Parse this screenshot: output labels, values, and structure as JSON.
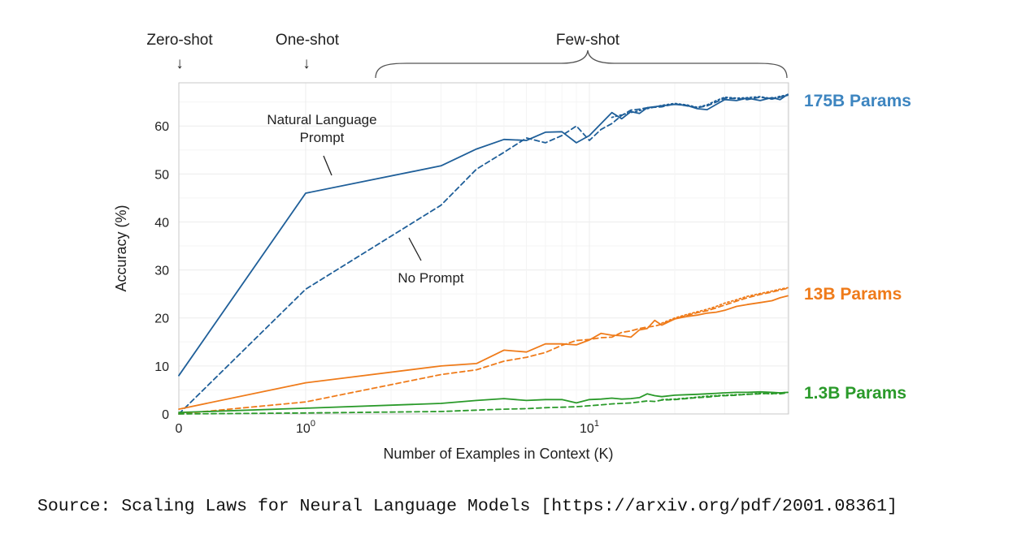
{
  "chart_data": {
    "type": "line",
    "xscale": "symlog",
    "xlabel": "Number of Examples in Context  (K)",
    "ylabel": "Accuracy (%)",
    "xlim": [
      0,
      50
    ],
    "ylim": [
      0,
      69
    ],
    "grid": true,
    "x_ticks": [
      {
        "value": 0,
        "base": "0",
        "exp": ""
      },
      {
        "value": 1,
        "base": "10",
        "exp": "0"
      },
      {
        "value": 10,
        "base": "10",
        "exp": "1"
      }
    ],
    "y_ticks": [
      0,
      10,
      20,
      30,
      40,
      50,
      60
    ],
    "regime_labels": {
      "zero_shot": "Zero-shot",
      "one_shot": "One-shot",
      "few_shot": "Few-shot",
      "arrow": "↓"
    },
    "annotations": {
      "natural_language_line1": "Natural Language",
      "natural_language_line2": "Prompt",
      "no_prompt": "No Prompt"
    },
    "groups": [
      {
        "label": "175B Params",
        "color": "#1f5f99",
        "label_color": "#3d85c0",
        "series": [
          {
            "style": "solid",
            "points": [
              [
                0,
                8
              ],
              [
                1,
                46
              ],
              [
                3,
                51.7
              ],
              [
                4,
                55.2
              ],
              [
                5,
                57.2
              ],
              [
                6,
                57
              ],
              [
                7,
                58.7
              ],
              [
                8,
                58.8
              ],
              [
                9,
                56.5
              ],
              [
                10,
                58
              ],
              [
                11,
                60.5
              ],
              [
                12,
                62.8
              ],
              [
                13,
                61.5
              ],
              [
                14,
                63
              ],
              [
                15,
                62.6
              ],
              [
                16,
                63.8
              ],
              [
                18,
                64.2
              ],
              [
                20,
                64.5
              ],
              [
                22,
                64.3
              ],
              [
                24,
                63.6
              ],
              [
                26,
                63.4
              ],
              [
                28,
                64.5
              ],
              [
                30,
                65.5
              ],
              [
                33,
                65.3
              ],
              [
                36,
                65.8
              ],
              [
                40,
                65.3
              ],
              [
                44,
                65.9
              ],
              [
                47,
                65.5
              ],
              [
                50,
                66.6
              ]
            ]
          },
          {
            "style": "dashed",
            "points": [
              [
                0,
                0
              ],
              [
                1,
                26
              ],
              [
                3,
                43.5
              ],
              [
                4,
                51
              ],
              [
                5,
                54.5
              ],
              [
                6,
                57.5
              ],
              [
                7,
                56.5
              ],
              [
                8,
                58
              ],
              [
                9,
                60
              ],
              [
                10,
                57
              ],
              [
                11,
                59.3
              ],
              [
                12,
                60.5
              ],
              [
                13,
                62.2
              ],
              [
                14,
                63.3
              ],
              [
                15,
                63.5
              ],
              [
                16,
                63.8
              ],
              [
                18,
                64
              ],
              [
                20,
                64.6
              ],
              [
                22,
                64.2
              ],
              [
                24,
                63.8
              ],
              [
                26,
                64.2
              ],
              [
                28,
                65
              ],
              [
                30,
                65.8
              ],
              [
                33,
                65.7
              ],
              [
                36,
                65.5
              ],
              [
                40,
                66
              ],
              [
                44,
                65.6
              ],
              [
                47,
                66
              ],
              [
                50,
                66.4
              ]
            ]
          },
          {
            "style": "dotted",
            "points": [
              [
                12,
                61.8
              ],
              [
                14,
                62.8
              ],
              [
                16,
                63.6
              ],
              [
                18,
                64.3
              ],
              [
                20,
                64.7
              ],
              [
                22,
                64.4
              ],
              [
                24,
                63.9
              ],
              [
                26,
                64.4
              ],
              [
                28,
                65.3
              ],
              [
                30,
                66
              ],
              [
                33,
                65.8
              ],
              [
                36,
                65.9
              ],
              [
                40,
                66.1
              ],
              [
                44,
                65.7
              ],
              [
                47,
                66.2
              ],
              [
                50,
                66.5
              ]
            ]
          }
        ]
      },
      {
        "label": "13B Params",
        "color": "#ef7b1a",
        "label_color": "#ef7b1a",
        "series": [
          {
            "style": "solid",
            "points": [
              [
                0,
                1
              ],
              [
                1,
                6.5
              ],
              [
                3,
                10
              ],
              [
                4,
                10.5
              ],
              [
                5,
                13.3
              ],
              [
                6,
                12.9
              ],
              [
                7,
                14.6
              ],
              [
                8,
                14.6
              ],
              [
                9,
                14.4
              ],
              [
                10,
                15.4
              ],
              [
                11,
                16.8
              ],
              [
                12,
                16.4
              ],
              [
                13,
                16.3
              ],
              [
                14,
                16
              ],
              [
                15,
                17.5
              ],
              [
                16,
                17.8
              ],
              [
                17,
                19.5
              ],
              [
                18,
                18.5
              ],
              [
                20,
                19.8
              ],
              [
                22,
                20.3
              ],
              [
                24,
                20.6
              ],
              [
                26,
                21
              ],
              [
                28,
                21.2
              ],
              [
                30,
                21.6
              ],
              [
                33,
                22.4
              ],
              [
                36,
                22.8
              ],
              [
                40,
                23.2
              ],
              [
                44,
                23.6
              ],
              [
                47,
                24.2
              ],
              [
                50,
                24.6
              ]
            ]
          },
          {
            "style": "dashed",
            "points": [
              [
                0,
                0
              ],
              [
                1,
                2.5
              ],
              [
                3,
                8.2
              ],
              [
                4,
                9.2
              ],
              [
                5,
                11
              ],
              [
                6,
                11.8
              ],
              [
                7,
                12.8
              ],
              [
                8,
                14.3
              ],
              [
                9,
                15.3
              ],
              [
                10,
                15.5
              ],
              [
                11,
                15.9
              ],
              [
                12,
                16
              ],
              [
                13,
                17
              ],
              [
                14,
                17.3
              ],
              [
                15,
                17.8
              ],
              [
                16,
                18.1
              ],
              [
                17,
                18.3
              ],
              [
                18,
                18.7
              ],
              [
                20,
                19.8
              ],
              [
                22,
                20.5
              ],
              [
                24,
                21.1
              ],
              [
                26,
                21.5
              ],
              [
                28,
                22.1
              ],
              [
                30,
                22.7
              ],
              [
                33,
                23.5
              ],
              [
                36,
                24.2
              ],
              [
                40,
                24.9
              ],
              [
                44,
                25.4
              ],
              [
                47,
                25.8
              ],
              [
                50,
                26.2
              ]
            ]
          },
          {
            "style": "dotted",
            "points": [
              [
                18,
                18.9
              ],
              [
                20,
                20
              ],
              [
                22,
                20.7
              ],
              [
                24,
                21.3
              ],
              [
                26,
                21.8
              ],
              [
                28,
                22.4
              ],
              [
                30,
                23.1
              ],
              [
                33,
                23.8
              ],
              [
                36,
                24.5
              ],
              [
                40,
                25.1
              ],
              [
                44,
                25.6
              ],
              [
                47,
                26
              ],
              [
                50,
                26.3
              ]
            ]
          }
        ]
      },
      {
        "label": "1.3B Params",
        "color": "#2a9a2a",
        "label_color": "#2a9a2a",
        "series": [
          {
            "style": "solid",
            "points": [
              [
                0,
                0.3
              ],
              [
                1,
                1.2
              ],
              [
                3,
                2.2
              ],
              [
                4,
                2.8
              ],
              [
                5,
                3.2
              ],
              [
                6,
                2.8
              ],
              [
                7,
                3
              ],
              [
                8,
                3
              ],
              [
                9,
                2.3
              ],
              [
                10,
                3
              ],
              [
                11,
                3.1
              ],
              [
                12,
                3.3
              ],
              [
                13,
                3.1
              ],
              [
                14,
                3.2
              ],
              [
                15,
                3.4
              ],
              [
                16,
                4.2
              ],
              [
                17,
                3.8
              ],
              [
                18,
                3.6
              ],
              [
                20,
                3.9
              ],
              [
                22,
                4
              ],
              [
                24,
                4.1
              ],
              [
                26,
                4.2
              ],
              [
                28,
                4.3
              ],
              [
                30,
                4.4
              ],
              [
                33,
                4.5
              ],
              [
                36,
                4.5
              ],
              [
                40,
                4.6
              ],
              [
                44,
                4.5
              ],
              [
                47,
                4.4
              ],
              [
                50,
                4.5
              ]
            ]
          },
          {
            "style": "dashed",
            "points": [
              [
                0,
                0
              ],
              [
                1,
                0.2
              ],
              [
                3,
                0.5
              ],
              [
                4,
                0.8
              ],
              [
                5,
                1
              ],
              [
                6,
                1.1
              ],
              [
                7,
                1.3
              ],
              [
                8,
                1.4
              ],
              [
                9,
                1.5
              ],
              [
                10,
                1.7
              ],
              [
                11,
                1.9
              ],
              [
                12,
                2.1
              ],
              [
                13,
                2.2
              ],
              [
                14,
                2.3
              ],
              [
                15,
                2.5
              ],
              [
                16,
                2.7
              ],
              [
                17,
                2.6
              ],
              [
                18,
                2.9
              ],
              [
                20,
                3
              ],
              [
                22,
                3.2
              ],
              [
                24,
                3.4
              ],
              [
                26,
                3.5
              ],
              [
                28,
                3.7
              ],
              [
                30,
                3.8
              ],
              [
                33,
                3.9
              ],
              [
                36,
                4.1
              ],
              [
                40,
                4.2
              ],
              [
                44,
                4.3
              ],
              [
                47,
                4.2
              ],
              [
                50,
                4.4
              ]
            ]
          },
          {
            "style": "dotted",
            "points": [
              [
                18,
                3
              ],
              [
                20,
                3.1
              ],
              [
                22,
                3.3
              ],
              [
                24,
                3.5
              ],
              [
                26,
                3.7
              ],
              [
                28,
                3.8
              ],
              [
                30,
                3.9
              ],
              [
                33,
                4
              ],
              [
                36,
                4.1
              ],
              [
                40,
                4.3
              ],
              [
                44,
                4.2
              ],
              [
                47,
                4.4
              ],
              [
                50,
                4.5
              ]
            ]
          }
        ]
      }
    ]
  },
  "source_text": "Source: Scaling Laws for Neural Language Models [https://arxiv.org/pdf/2001.08361]"
}
